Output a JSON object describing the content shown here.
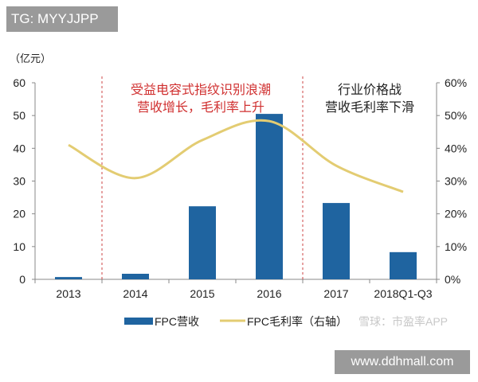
{
  "tag": "TG: MYYJJPP",
  "site": "www.ddhmall.com",
  "watermark": "雪球：市盈率APP",
  "chart_data": {
    "type": "bar+line",
    "categories": [
      "2013",
      "2014",
      "2015",
      "2016",
      "2017",
      "2018Q1-Q3"
    ],
    "y_unit_label": "（亿元）",
    "ylim": [
      0,
      60
    ],
    "yticks": [
      "0",
      "10",
      "20",
      "30",
      "40",
      "50",
      "60"
    ],
    "y2lim": [
      0,
      60
    ],
    "y2ticks": [
      "0%",
      "10%",
      "20%",
      "30%",
      "40%",
      "50%",
      "60%"
    ],
    "series": [
      {
        "name": "FPC营收",
        "type": "bar",
        "axis": "left",
        "color": "#1f64a0",
        "values": [
          0.7,
          1.7,
          22.3,
          50.5,
          23.3,
          8.3
        ]
      },
      {
        "name": "FPC毛利率（右轴）",
        "type": "line",
        "axis": "right",
        "color": "#e3cc72",
        "values": [
          41.0,
          30.9,
          42.5,
          48.3,
          34.7,
          26.7
        ]
      }
    ],
    "annotations": [
      {
        "lines": [
          "受益电容式指纹识别浪潮",
          "营收增长，毛利率上升"
        ],
        "color": "#d03030"
      },
      {
        "lines": [
          "行业价格战",
          "营收毛利率下滑"
        ],
        "color": "#222222"
      }
    ],
    "grid": false,
    "legend": "bottom"
  }
}
